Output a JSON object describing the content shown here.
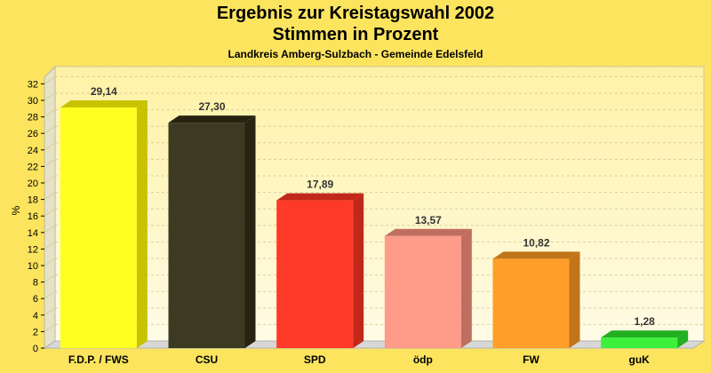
{
  "chart_data": {
    "type": "bar",
    "title": "Ergebnis zur Kreistagswahl 2002",
    "subtitle_line2": "Stimmen in Prozent",
    "subtitle": "Landkreis Amberg-Sulzbach - Gemeinde Edelsfeld",
    "ylabel": "%",
    "xlabel": "",
    "ylim": [
      0,
      33
    ],
    "yticks": [
      0,
      2,
      4,
      6,
      8,
      10,
      12,
      14,
      16,
      18,
      20,
      22,
      24,
      26,
      28,
      30,
      32
    ],
    "grid": true,
    "categories": [
      "F.D.P. / FWS",
      "CSU",
      "SPD",
      "ödp",
      "FW",
      "guK"
    ],
    "values": [
      29.14,
      27.3,
      17.89,
      13.57,
      10.82,
      1.28
    ],
    "value_labels": [
      "29,14",
      "27,30",
      "17,89",
      "13,57",
      "10,82",
      "1,28"
    ],
    "colors": [
      "#ffff22",
      "#3d3a22",
      "#ff3a28",
      "#ff9b88",
      "#ff9e28",
      "#3cf03c"
    ],
    "side_colors": [
      "#c8c200",
      "#262410",
      "#c2281a",
      "#c06e60",
      "#c27418",
      "#22b022"
    ]
  }
}
